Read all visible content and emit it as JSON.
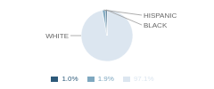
{
  "chart_data": {
    "type": "pie",
    "categories": [
      "WHITE",
      "HISPANIC",
      "BLACK"
    ],
    "values": [
      97.1,
      1.9,
      1.0
    ],
    "value_labels": [
      "97.1%",
      "1.9%",
      "1.0%"
    ],
    "colors": [
      "#dce6f0",
      "#7fa8c0",
      "#2d5a7a"
    ],
    "legend": "bottom"
  }
}
